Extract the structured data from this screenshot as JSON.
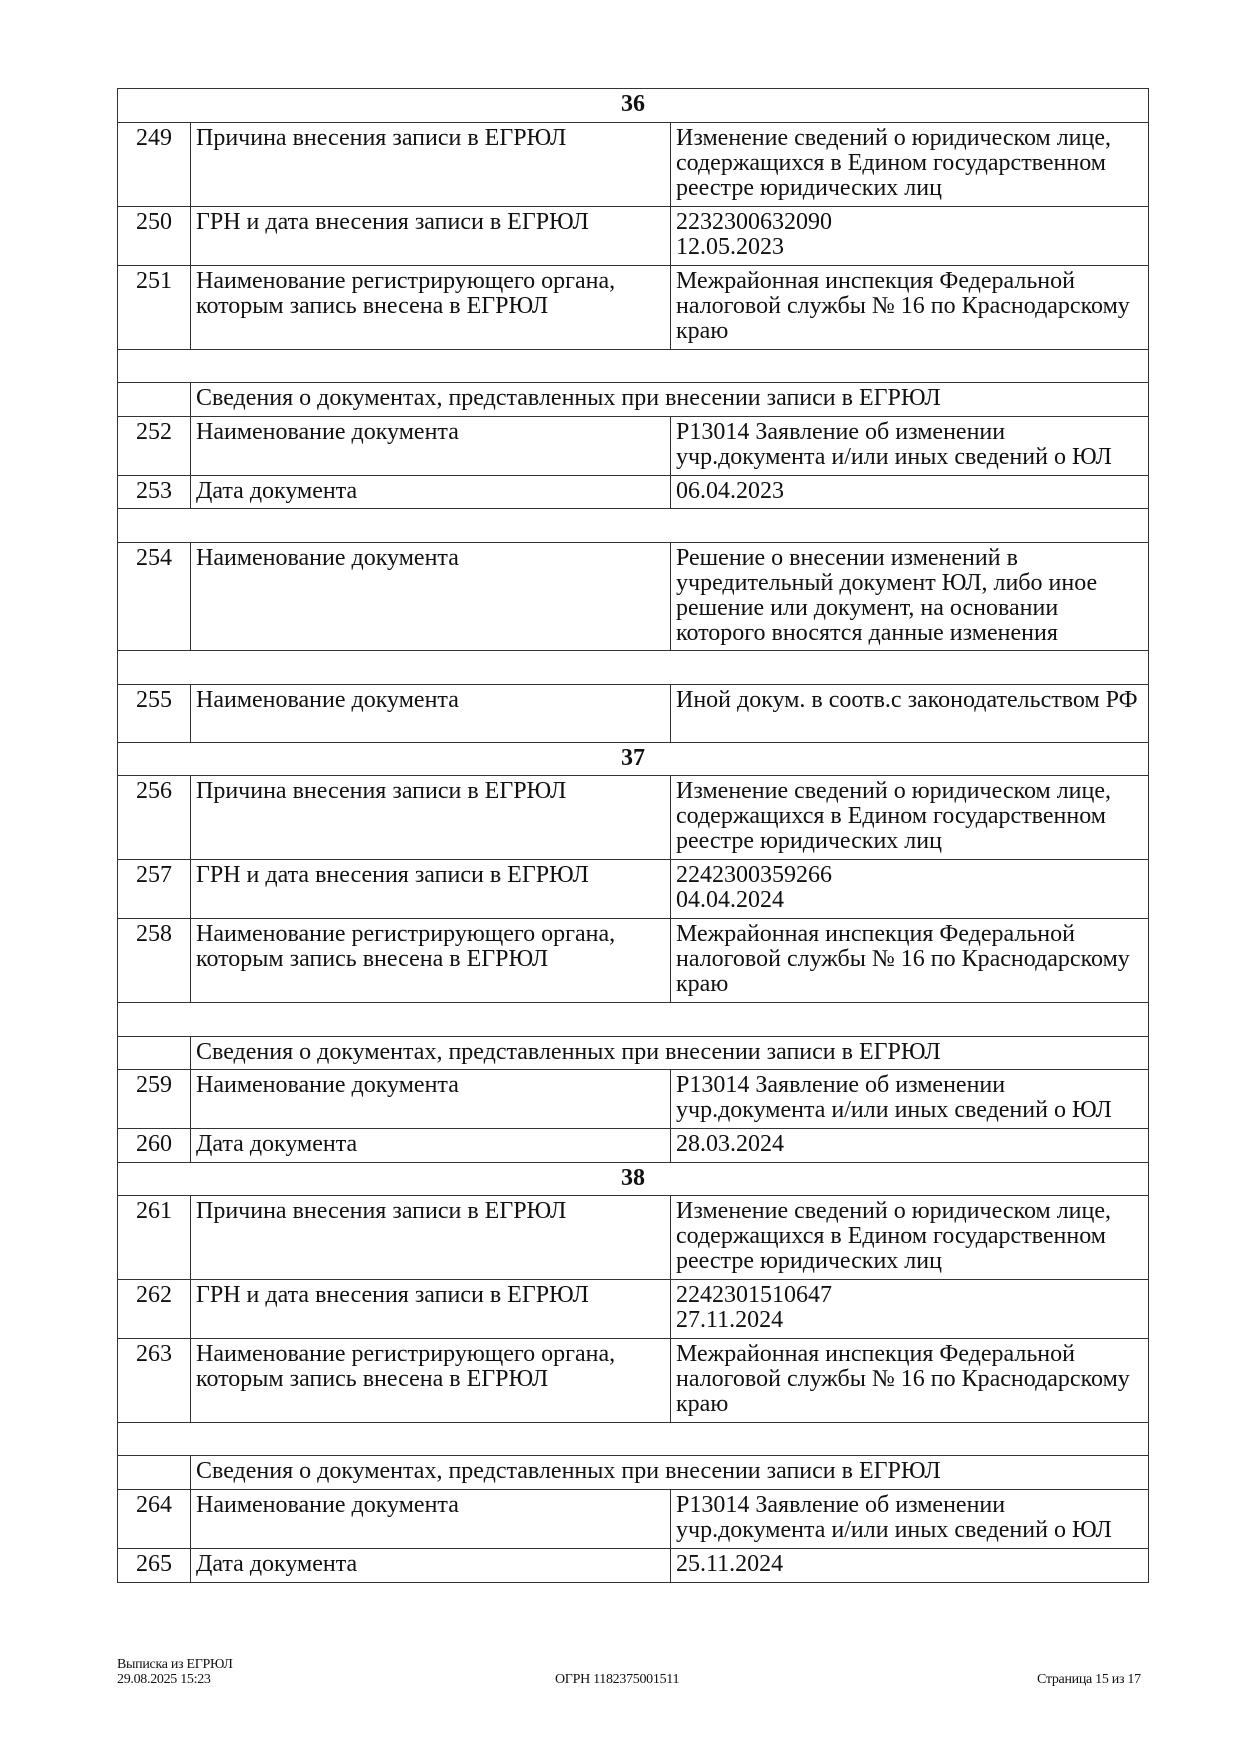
{
  "rows": [
    {
      "type": "section",
      "label": "36",
      "h": 34
    },
    {
      "type": "row",
      "num": "249",
      "field": "Причина внесения записи в ЕГРЮЛ",
      "value": "Изменение сведений о юридическом лице, содержащихся в Едином государственном реестре юридических лиц",
      "h": 84
    },
    {
      "type": "row",
      "num": "250",
      "field": "ГРН и дата внесения записи в ЕГРЮЛ",
      "value": "2232300632090\n12.05.2023",
      "h": 59
    },
    {
      "type": "row",
      "num": "251",
      "field": "Наименование регистрирующего органа, которым запись внесена в ЕГРЮЛ",
      "value": "Межрайонная инспекция Федеральной налоговой службы № 16 по Краснодарскому краю",
      "h": 84
    },
    {
      "type": "blank",
      "h": 33
    },
    {
      "type": "subheader",
      "label": "Сведения о документах, представленных при внесении записи в ЕГРЮЛ",
      "h": 34
    },
    {
      "type": "row",
      "num": "252",
      "field": "Наименование документа",
      "value": "Р13014 Заявление об изменении учр.документа и/или иных сведений о ЮЛ",
      "h": 59
    },
    {
      "type": "row",
      "num": "253",
      "field": "Дата документа",
      "value": "06.04.2023",
      "h": 33
    },
    {
      "type": "blank",
      "h": 34
    },
    {
      "type": "row",
      "num": "254",
      "field": "Наименование документа",
      "value": "Решение о внесении изменений в учредительный документ ЮЛ, либо иное решение или документ, на основании которого вносятся данные изменения",
      "h": 108
    },
    {
      "type": "blank",
      "h": 34
    },
    {
      "type": "row",
      "num": "255",
      "field": "Наименование документа",
      "value": "Иной докум. в соотв.с законодательством РФ",
      "h": 58
    },
    {
      "type": "section",
      "label": "37",
      "h": 33
    },
    {
      "type": "row",
      "num": "256",
      "field": "Причина внесения записи в ЕГРЮЛ",
      "value": "Изменение сведений о юридическом лице, содержащихся в Едином государственном реестре юридических лиц",
      "h": 84
    },
    {
      "type": "row",
      "num": "257",
      "field": "ГРН и дата внесения записи в ЕГРЮЛ",
      "value": "2242300359266\n04.04.2024",
      "h": 59
    },
    {
      "type": "row",
      "num": "258",
      "field": "Наименование регистрирующего органа, которым запись внесена в ЕГРЮЛ",
      "value": "Межрайонная инспекция Федеральной налоговой службы № 16 по Краснодарскому краю",
      "h": 84
    },
    {
      "type": "blank",
      "h": 34
    },
    {
      "type": "subheader",
      "label": "Сведения о документах, представленных при внесении записи в ЕГРЮЛ",
      "h": 33
    },
    {
      "type": "row",
      "num": "259",
      "field": "Наименование документа",
      "value": "Р13014 Заявление об изменении учр.документа и/или иных сведений о ЮЛ",
      "h": 59
    },
    {
      "type": "row",
      "num": "260",
      "field": "Дата документа",
      "value": "28.03.2024",
      "h": 34
    },
    {
      "type": "section",
      "label": "38",
      "h": 33
    },
    {
      "type": "row",
      "num": "261",
      "field": "Причина внесения записи в ЕГРЮЛ",
      "value": "Изменение сведений о юридическом лице, содержащихся в Едином государственном реестре юридических лиц",
      "h": 84
    },
    {
      "type": "row",
      "num": "262",
      "field": "ГРН и дата внесения записи в ЕГРЮЛ",
      "value": "2242301510647\n27.11.2024",
      "h": 59
    },
    {
      "type": "row",
      "num": "263",
      "field": "Наименование регистрирующего органа, которым запись внесена в ЕГРЮЛ",
      "value": "Межрайонная инспекция Федеральной налоговой службы № 16 по Краснодарскому краю",
      "h": 84
    },
    {
      "type": "blank",
      "h": 33
    },
    {
      "type": "subheader",
      "label": "Сведения о документах, представленных при внесении записи в ЕГРЮЛ",
      "h": 34
    },
    {
      "type": "row",
      "num": "264",
      "field": "Наименование документа",
      "value": "Р13014 Заявление об изменении учр.документа и/или иных сведений о ЮЛ",
      "h": 59
    },
    {
      "type": "row",
      "num": "265",
      "field": "Дата документа",
      "value": "25.11.2024",
      "h": 34
    }
  ],
  "footer": {
    "title": "Выписка из ЕГРЮЛ",
    "datetime": "29.08.2025 15:23",
    "ogrn": "ОГРН 1182375001511",
    "page": "Страница 15 из 17"
  }
}
